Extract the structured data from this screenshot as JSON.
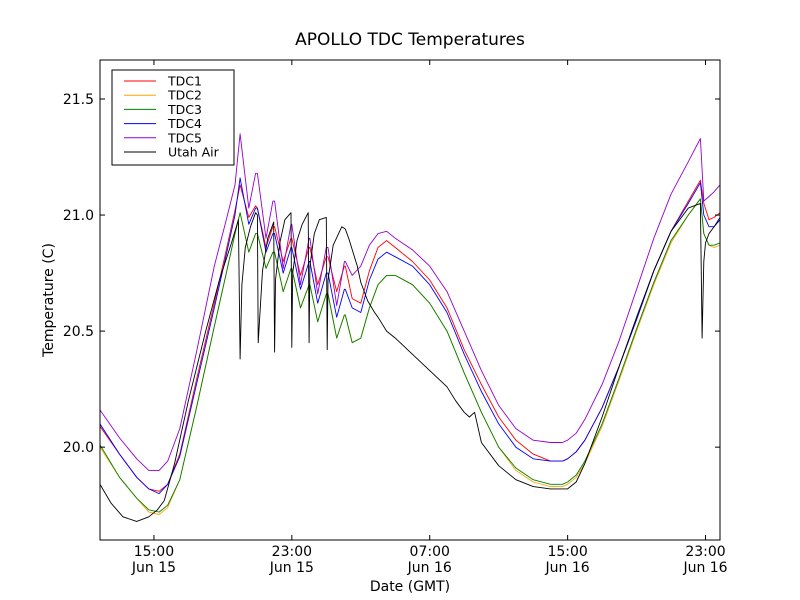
{
  "chart_data": {
    "type": "line",
    "title": "APOLLO TDC Temperatures",
    "xlabel": "Date (GMT)",
    "ylabel": "Temperature (C)",
    "x_units": "hours since Jun 15 00:00 GMT",
    "xlim": [
      11.87,
      47.84
    ],
    "ylim": [
      19.6,
      21.668
    ],
    "grid": false,
    "legend_position": "top-left",
    "xticks": [
      {
        "value": 15,
        "label_time": "15:00",
        "label_date": "Jun 15"
      },
      {
        "value": 23,
        "label_time": "23:00",
        "label_date": "Jun 15"
      },
      {
        "value": 31,
        "label_time": "07:00",
        "label_date": "Jun 16"
      },
      {
        "value": 39,
        "label_time": "15:00",
        "label_date": "Jun 16"
      },
      {
        "value": 47,
        "label_time": "23:00",
        "label_date": "Jun 16"
      }
    ],
    "yticks": [
      {
        "value": 20.0,
        "label": "20.0"
      },
      {
        "value": 20.5,
        "label": "20.5"
      },
      {
        "value": 21.0,
        "label": "21.0"
      },
      {
        "value": 21.5,
        "label": "21.5"
      }
    ],
    "series": [
      {
        "name": "TDC1",
        "color": "#ff0000",
        "x": [
          11.87,
          13.0,
          14.0,
          14.7,
          15.3,
          15.8,
          16.5,
          17.5,
          18.5,
          19.2,
          19.7,
          20.0,
          20.5,
          20.9,
          21.0,
          21.5,
          21.9,
          22.0,
          22.5,
          22.95,
          23.0,
          23.5,
          24.0,
          24.05,
          24.5,
          25.0,
          25.1,
          25.6,
          26.05,
          26.1,
          26.5,
          27.0,
          27.5,
          28.0,
          28.5,
          29.0,
          30.0,
          31.0,
          32.0,
          33.0,
          34.0,
          35.0,
          36.0,
          37.0,
          38.0,
          38.7,
          39.0,
          39.5,
          40.0,
          41.0,
          42.0,
          43.0,
          44.0,
          45.0,
          46.0,
          46.7,
          46.9,
          47.2,
          47.5,
          47.84
        ],
        "y": [
          20.09,
          19.97,
          19.87,
          19.82,
          19.81,
          19.84,
          19.97,
          20.3,
          20.62,
          20.85,
          21.02,
          21.13,
          20.99,
          21.04,
          21.03,
          20.86,
          20.95,
          20.95,
          20.8,
          20.9,
          20.9,
          20.74,
          20.86,
          20.86,
          20.7,
          20.82,
          20.82,
          20.67,
          20.78,
          20.78,
          20.64,
          20.62,
          20.76,
          20.86,
          20.89,
          20.86,
          20.8,
          20.72,
          20.6,
          20.42,
          20.27,
          20.13,
          20.03,
          19.97,
          19.94,
          19.94,
          19.95,
          19.98,
          20.03,
          20.17,
          20.35,
          20.55,
          20.76,
          20.93,
          21.06,
          21.15,
          21.05,
          20.98,
          20.99,
          21.01
        ]
      },
      {
        "name": "TDC2",
        "color": "#ffa500",
        "x": [
          11.87,
          13.0,
          14.0,
          14.7,
          15.3,
          15.8,
          16.5,
          17.5,
          18.5,
          19.2,
          19.7,
          20.0,
          20.5,
          20.9,
          21.0,
          21.5,
          21.9,
          22.0,
          22.5,
          22.95,
          23.0,
          23.5,
          24.0,
          24.05,
          24.5,
          25.0,
          25.1,
          25.6,
          26.05,
          26.1,
          26.5,
          27.0,
          27.5,
          28.0,
          28.5,
          29.0,
          30.0,
          31.0,
          32.0,
          33.0,
          34.0,
          35.0,
          36.0,
          37.0,
          38.0,
          38.7,
          39.0,
          39.5,
          40.0,
          41.0,
          42.0,
          43.0,
          44.0,
          45.0,
          46.0,
          46.7,
          46.9,
          47.2,
          47.5,
          47.84
        ],
        "y": [
          20.0,
          19.87,
          19.78,
          19.72,
          19.71,
          19.74,
          19.86,
          20.18,
          20.52,
          20.75,
          20.92,
          21.01,
          20.84,
          20.92,
          20.92,
          20.77,
          20.84,
          20.84,
          20.67,
          20.77,
          20.77,
          20.6,
          20.7,
          20.7,
          20.54,
          20.66,
          20.66,
          20.47,
          20.57,
          20.57,
          20.45,
          20.47,
          20.6,
          20.7,
          20.74,
          20.74,
          20.7,
          20.62,
          20.5,
          20.32,
          20.15,
          20.0,
          19.9,
          19.85,
          19.83,
          19.83,
          19.84,
          19.87,
          19.93,
          20.09,
          20.29,
          20.5,
          20.7,
          20.88,
          21.0,
          21.07,
          20.92,
          20.87,
          20.86,
          20.87
        ]
      },
      {
        "name": "TDC3",
        "color": "#008000",
        "x": [
          11.87,
          13.0,
          14.0,
          14.7,
          15.3,
          15.8,
          16.5,
          17.5,
          18.5,
          19.2,
          19.7,
          20.0,
          20.5,
          20.9,
          21.0,
          21.5,
          21.9,
          22.0,
          22.5,
          22.95,
          23.0,
          23.5,
          24.0,
          24.05,
          24.5,
          25.0,
          25.1,
          25.6,
          26.05,
          26.1,
          26.5,
          27.0,
          27.5,
          28.0,
          28.5,
          29.0,
          30.0,
          31.0,
          32.0,
          33.0,
          34.0,
          35.0,
          36.0,
          37.0,
          38.0,
          38.7,
          39.0,
          39.5,
          40.0,
          41.0,
          42.0,
          43.0,
          44.0,
          45.0,
          46.0,
          46.7,
          46.9,
          47.2,
          47.5,
          47.84
        ],
        "y": [
          20.01,
          19.87,
          19.78,
          19.73,
          19.72,
          19.75,
          19.86,
          20.18,
          20.52,
          20.75,
          20.92,
          21.01,
          20.84,
          20.92,
          20.92,
          20.77,
          20.84,
          20.84,
          20.67,
          20.77,
          20.77,
          20.6,
          20.7,
          20.7,
          20.54,
          20.66,
          20.66,
          20.47,
          20.57,
          20.57,
          20.45,
          20.47,
          20.6,
          20.7,
          20.74,
          20.74,
          20.7,
          20.62,
          20.5,
          20.32,
          20.15,
          20.0,
          19.91,
          19.86,
          19.84,
          19.84,
          19.85,
          19.88,
          19.94,
          20.1,
          20.3,
          20.51,
          20.71,
          20.89,
          21.0,
          21.07,
          20.92,
          20.87,
          20.87,
          20.88
        ]
      },
      {
        "name": "TDC4",
        "color": "#0000ff",
        "x": [
          11.87,
          13.0,
          14.0,
          14.7,
          15.3,
          15.8,
          16.5,
          17.5,
          18.5,
          19.2,
          19.7,
          20.0,
          20.5,
          20.9,
          21.0,
          21.5,
          21.9,
          22.0,
          22.5,
          22.95,
          23.0,
          23.5,
          24.0,
          24.05,
          24.5,
          25.0,
          25.1,
          25.6,
          26.05,
          26.1,
          26.5,
          27.0,
          27.5,
          28.0,
          28.5,
          29.0,
          30.0,
          31.0,
          32.0,
          33.0,
          34.0,
          35.0,
          36.0,
          37.0,
          38.0,
          38.7,
          39.0,
          39.5,
          40.0,
          41.0,
          42.0,
          43.0,
          44.0,
          45.0,
          46.0,
          46.7,
          46.9,
          47.2,
          47.5,
          47.84
        ],
        "y": [
          20.1,
          19.97,
          19.87,
          19.82,
          19.8,
          19.84,
          19.96,
          20.28,
          20.6,
          20.83,
          21.0,
          21.16,
          20.96,
          21.03,
          21.03,
          20.84,
          20.92,
          20.92,
          20.75,
          20.86,
          20.86,
          20.68,
          20.8,
          20.8,
          20.62,
          20.75,
          20.75,
          20.56,
          20.68,
          20.68,
          20.6,
          20.58,
          20.72,
          20.81,
          20.84,
          20.82,
          20.78,
          20.7,
          20.58,
          20.4,
          20.24,
          20.1,
          20.0,
          19.95,
          19.94,
          19.94,
          19.95,
          19.98,
          20.03,
          20.17,
          20.35,
          20.55,
          20.76,
          20.93,
          21.05,
          21.14,
          21.0,
          20.95,
          20.95,
          20.99
        ]
      },
      {
        "name": "TDC5",
        "color": "#9400d3",
        "x": [
          11.87,
          13.0,
          14.0,
          14.7,
          15.3,
          15.8,
          16.5,
          17.5,
          18.5,
          19.2,
          19.7,
          20.0,
          20.5,
          20.9,
          21.0,
          21.5,
          21.9,
          22.0,
          22.5,
          22.95,
          23.0,
          23.5,
          24.0,
          24.05,
          24.5,
          25.0,
          25.1,
          25.6,
          26.05,
          26.1,
          26.5,
          27.0,
          27.5,
          28.0,
          28.5,
          29.0,
          30.0,
          31.0,
          32.0,
          33.0,
          34.0,
          35.0,
          36.0,
          37.0,
          38.0,
          38.7,
          39.0,
          39.5,
          40.0,
          41.0,
          42.0,
          43.0,
          44.0,
          45.0,
          46.0,
          46.7,
          46.9,
          47.2,
          47.5,
          47.84
        ],
        "y": [
          20.16,
          20.04,
          19.95,
          19.9,
          19.9,
          19.94,
          20.08,
          20.42,
          20.78,
          20.98,
          21.13,
          21.35,
          21.03,
          21.18,
          21.18,
          20.9,
          21.06,
          21.06,
          20.77,
          20.96,
          20.96,
          20.7,
          20.9,
          20.9,
          20.66,
          20.86,
          20.86,
          20.61,
          20.8,
          20.8,
          20.74,
          20.78,
          20.87,
          20.92,
          20.93,
          20.9,
          20.85,
          20.78,
          20.67,
          20.5,
          20.33,
          20.18,
          20.08,
          20.03,
          20.02,
          20.02,
          20.03,
          20.06,
          20.12,
          20.27,
          20.46,
          20.68,
          20.9,
          21.09,
          21.23,
          21.33,
          21.06,
          21.08,
          21.1,
          21.13
        ]
      },
      {
        "name": "Utah Air",
        "color": "#000000",
        "x": [
          11.87,
          12.5,
          13.2,
          14.0,
          14.7,
          15.2,
          15.6,
          16.2,
          17.0,
          18.0,
          18.8,
          19.5,
          19.9,
          20.0,
          20.1,
          20.3,
          20.6,
          20.9,
          21.0,
          21.05,
          21.3,
          21.6,
          21.95,
          22.0,
          22.05,
          22.3,
          22.6,
          22.95,
          23.0,
          23.05,
          23.3,
          23.6,
          23.95,
          24.0,
          24.05,
          24.3,
          24.6,
          25.0,
          25.05,
          25.1,
          25.4,
          25.9,
          26.1,
          26.3,
          26.8,
          27.0,
          27.4,
          27.8,
          28.0,
          28.5,
          29.0,
          30.0,
          31.0,
          32.0,
          32.5,
          33.0,
          33.3,
          33.6,
          34.0,
          35.0,
          36.0,
          37.0,
          38.0,
          38.5,
          39.0,
          39.5,
          40.0,
          41.0,
          42.0,
          43.0,
          44.0,
          45.0,
          46.0,
          46.7,
          46.8,
          46.9,
          47.0,
          47.2,
          47.5,
          47.84
        ],
        "y": [
          19.84,
          19.76,
          19.7,
          19.68,
          19.7,
          19.73,
          19.77,
          19.93,
          20.2,
          20.5,
          20.72,
          20.88,
          20.98,
          20.38,
          20.7,
          20.86,
          20.95,
          21.01,
          21.0,
          20.45,
          20.76,
          20.9,
          20.97,
          20.41,
          20.72,
          20.88,
          20.98,
          21.01,
          20.43,
          20.75,
          20.89,
          20.96,
          21.01,
          20.45,
          20.78,
          20.92,
          20.98,
          20.99,
          20.42,
          20.72,
          20.87,
          20.95,
          20.94,
          20.9,
          20.78,
          20.71,
          20.63,
          20.58,
          20.56,
          20.5,
          20.47,
          20.4,
          20.33,
          20.26,
          20.2,
          20.15,
          20.13,
          20.15,
          20.02,
          19.92,
          19.86,
          19.83,
          19.82,
          19.82,
          19.82,
          19.85,
          19.93,
          20.13,
          20.35,
          20.56,
          20.76,
          20.93,
          21.03,
          21.05,
          20.47,
          20.8,
          20.88,
          20.92,
          20.95,
          20.98
        ]
      }
    ]
  }
}
